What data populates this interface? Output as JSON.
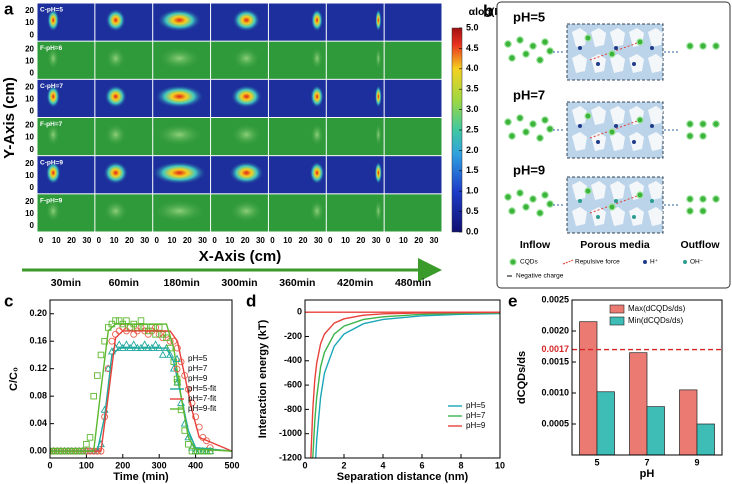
{
  "panel_a": {
    "panel": "a",
    "ylabel": "Y-Axis (cm)",
    "xlabel": "X-Axis (cm)",
    "row_labels": [
      "C-pH=5",
      "F-pH=6",
      "C-pH=7",
      "F-pH=7",
      "C-pH=9",
      "F-pH=9"
    ],
    "yticks": [
      0,
      10,
      20
    ],
    "xticks": [
      0,
      10,
      20,
      30
    ],
    "time_labels": [
      "30min",
      "60min",
      "180min",
      "300min",
      "360min",
      "420min",
      "480min"
    ],
    "colorbar": {
      "title": "αlog(I₀/I)",
      "lim": [
        0,
        5
      ],
      "ticks": [
        {
          "value": 0,
          "label": "0.0"
        },
        0.5,
        {
          "value": 1,
          "label": "1.0"
        },
        1.5,
        {
          "value": 2,
          "label": "2.0"
        },
        2.5,
        {
          "value": 3,
          "label": "3.0"
        },
        3.5,
        {
          "value": 4,
          "label": "4.0"
        },
        4.5,
        {
          "value": 5,
          "label": "5.0"
        }
      ]
    }
  },
  "panel_b": {
    "panel": "b",
    "row_labels": [
      "pH=5",
      "pH=7",
      "pH=9"
    ],
    "columns": [
      "Inflow",
      "Porous media",
      "Outflow"
    ],
    "legend": [
      "CQDs",
      "Repulsive force",
      "H⁺",
      "OH⁻",
      "Negative charge"
    ]
  },
  "chart_data": [
    {
      "type": "scatter",
      "panel": "c",
      "xlabel": "Time (min)",
      "ylabel": "C/C₀",
      "xlim": [
        0,
        500
      ],
      "ylim": [
        -0.01,
        0.22
      ],
      "xticks": [
        0,
        100,
        200,
        300,
        400,
        500
      ],
      "yticks": [
        {
          "value": 0,
          "label": "0.00"
        },
        {
          "value": 0.04,
          "label": "0.04"
        },
        {
          "value": 0.08,
          "label": "0.08"
        },
        {
          "value": 0.12,
          "label": "0.12"
        },
        {
          "value": 0.16,
          "label": "0.16"
        },
        {
          "value": 0.2,
          "label": "0.20"
        }
      ],
      "legend": "right",
      "x": [
        0,
        10,
        20,
        30,
        40,
        50,
        60,
        70,
        80,
        90,
        100,
        110,
        120,
        130,
        140,
        150,
        160,
        170,
        180,
        190,
        200,
        210,
        220,
        230,
        240,
        250,
        260,
        270,
        280,
        290,
        300,
        310,
        320,
        330,
        340,
        350,
        360,
        370,
        380,
        390,
        400,
        410,
        420,
        430,
        440
      ],
      "series": [
        {
          "name": "pH=5",
          "color": "#1fa89e",
          "marker": "triangle",
          "values": [
            0,
            0,
            0,
            0,
            0,
            0,
            0,
            0,
            0,
            0,
            0,
            0,
            0,
            0,
            0.01,
            0.06,
            0.12,
            0.145,
            0.15,
            0.155,
            0.15,
            0.155,
            0.15,
            0.155,
            0.15,
            0.15,
            0.155,
            0.15,
            0.15,
            0.155,
            0.15,
            0.14,
            0.15,
            0.14,
            0.12,
            0.1,
            0.07,
            0.04,
            0.02,
            0.005,
            0,
            0,
            0,
            0,
            0
          ]
        },
        {
          "name": "pH=7",
          "color": "#e8604c",
          "marker": "circle",
          "values": [
            0,
            0,
            0,
            0,
            0,
            0,
            0,
            0,
            0,
            0,
            0,
            0,
            0,
            0,
            0,
            0.05,
            0.12,
            0.16,
            0.17,
            0.175,
            0.18,
            0.175,
            0.18,
            0.17,
            0.175,
            0.18,
            0.175,
            0.17,
            0.175,
            0.18,
            0.17,
            0.165,
            0.17,
            0.16,
            0.16,
            0.15,
            0.13,
            0.11,
            0.09,
            0.07,
            0.05,
            0.035,
            0.02,
            0.015,
            0.005
          ]
        },
        {
          "name": "pH=9",
          "color": "#5cb82e",
          "marker": "square",
          "values": [
            0,
            0,
            0,
            0,
            0,
            0,
            0,
            0,
            0,
            0,
            0.01,
            0.02,
            0.08,
            0.11,
            0.14,
            0.16,
            0.18,
            0.185,
            0.19,
            0.19,
            0.185,
            0.19,
            0.18,
            0.185,
            0.18,
            0.19,
            0.18,
            0.175,
            0.18,
            0.17,
            0.18,
            0.17,
            0.165,
            0.15,
            0.13,
            0.1,
            0.06,
            0.03,
            0.01,
            0,
            0,
            0,
            0,
            0,
            0
          ]
        },
        {
          "name": "pH=5-fit",
          "color": "#1fa89e",
          "x": [
            0,
            130,
            150,
            170,
            190,
            320,
            340,
            360,
            380,
            400,
            500
          ],
          "values": [
            0,
            0,
            0.05,
            0.14,
            0.15,
            0.15,
            0.13,
            0.08,
            0.03,
            0.005,
            0
          ]
        },
        {
          "name": "pH=7-fit",
          "color": "#e8413a",
          "x": [
            0,
            140,
            160,
            180,
            200,
            330,
            350,
            370,
            390,
            410,
            500
          ],
          "values": [
            0,
            0,
            0.08,
            0.165,
            0.175,
            0.175,
            0.16,
            0.11,
            0.06,
            0.02,
            0
          ]
        },
        {
          "name": "pH=9-fit",
          "color": "#5cb82e",
          "x": [
            0,
            120,
            140,
            160,
            180,
            320,
            340,
            360,
            380,
            400,
            500
          ],
          "values": [
            0,
            0,
            0.09,
            0.175,
            0.185,
            0.185,
            0.15,
            0.08,
            0.02,
            0.003,
            0
          ]
        }
      ]
    },
    {
      "type": "line",
      "panel": "d",
      "xlabel": "Separation distance (nm)",
      "ylabel": "Interaction energy (kT)",
      "xlim": [
        0,
        10
      ],
      "ylim": [
        -1200,
        100
      ],
      "xticks": [
        0,
        2,
        4,
        6,
        8,
        10
      ],
      "yticks": [
        0,
        -200,
        -400,
        -600,
        -800,
        -1000,
        -1200
      ],
      "legend": "lower right",
      "reference_line": {
        "value": 0,
        "color": "#e8413a"
      },
      "series": [
        {
          "name": "pH=5",
          "color": "#1aa6b7",
          "x": [
            0.55,
            0.6,
            0.8,
            1,
            1.5,
            2,
            3,
            4,
            6,
            8,
            10
          ],
          "values": [
            -1200,
            -1050,
            -700,
            -500,
            -280,
            -180,
            -95,
            -60,
            -30,
            -18,
            -12
          ]
        },
        {
          "name": "pH=7",
          "color": "#3cb44b",
          "x": [
            0.4,
            0.5,
            0.6,
            0.8,
            1,
            1.5,
            2,
            3,
            4,
            6,
            8,
            10
          ],
          "values": [
            -1200,
            -900,
            -700,
            -450,
            -330,
            -180,
            -115,
            -60,
            -38,
            -18,
            -10,
            -6
          ]
        },
        {
          "name": "pH=9",
          "color": "#e8413a",
          "x": [
            0.3,
            0.4,
            0.5,
            0.6,
            0.8,
            1,
            1.5,
            2,
            3,
            4,
            6,
            8,
            10
          ],
          "values": [
            -1200,
            -800,
            -560,
            -420,
            -260,
            -180,
            -90,
            -55,
            -25,
            -14,
            -6,
            -3,
            -2
          ]
        }
      ]
    },
    {
      "type": "bar",
      "panel": "e",
      "xlabel": "pH",
      "ylabel": "dCQDs/ds",
      "categories": [
        "5",
        "7",
        "9"
      ],
      "ylim": [
        0,
        0.0025
      ],
      "yticks": [
        0.0005,
        {
          "value": 0.001,
          "label": "0.0010"
        },
        0.0015,
        {
          "value": 0.002,
          "label": "0.0020"
        },
        0.0025
      ],
      "legend": "upper right",
      "reference_line": {
        "value": 0.0017,
        "label": "0.0017",
        "color": "#d62728"
      },
      "series": [
        {
          "name": "Max(dCQDs/ds)",
          "color": "#ea7a72",
          "values": [
            0.00215,
            0.00165,
            0.00105
          ]
        },
        {
          "name": "Min(dCQDs/ds)",
          "color": "#3dbdb6",
          "values": [
            0.00102,
            0.00078,
            0.0005
          ]
        }
      ]
    }
  ]
}
